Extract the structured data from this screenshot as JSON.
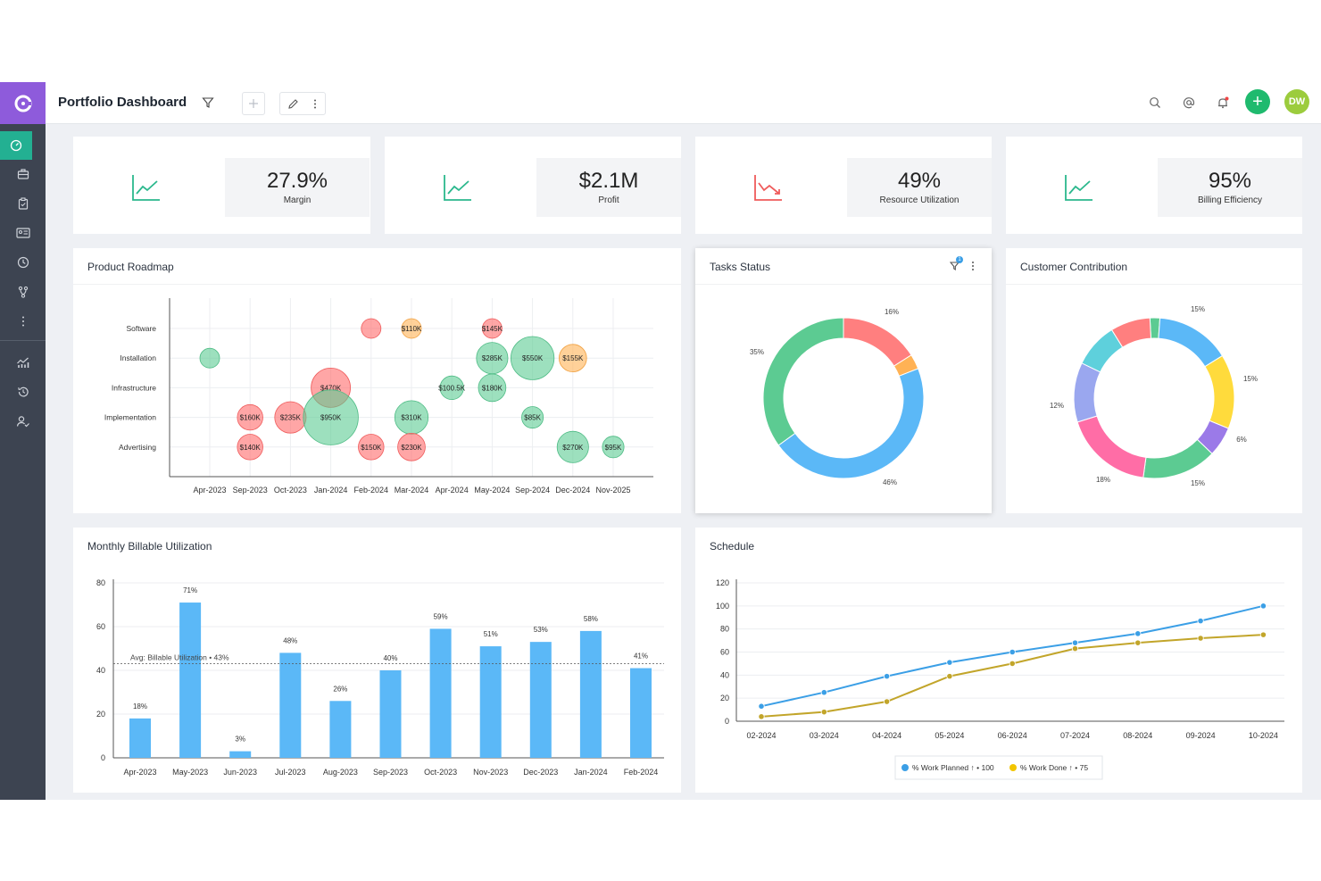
{
  "header": {
    "title": "Portfolio Dashboard",
    "avatar_initials": "DW"
  },
  "colors": {
    "sidebar": "#3d4451",
    "logo": "#8e5bdb",
    "active": "#23b092",
    "green": "#1fba6e",
    "blue": "#5bb8f7",
    "gold": "#c2a52a"
  },
  "sidebar": {
    "icons": [
      "dashboard-icon",
      "briefcase-icon",
      "clipboard-icon",
      "id-card-icon",
      "clock-icon",
      "branch-icon",
      "more-icon",
      "analytics-icon",
      "history-icon",
      "user-check-icon"
    ]
  },
  "kpis": [
    {
      "value": "27.9%",
      "label": "Margin",
      "trend": "up"
    },
    {
      "value": "$2.1M",
      "label": "Profit",
      "trend": "up"
    },
    {
      "value": "49%",
      "label": "Resource Utilization",
      "trend": "down"
    },
    {
      "value": "95%",
      "label": "Billing Efficiency",
      "trend": "up"
    }
  ],
  "cards": {
    "roadmap": "Product Roadmap",
    "tasks": "Tasks Status",
    "tasks_filter_badge": "1",
    "customer": "Customer Contribution",
    "monthly": "Monthly Billable Utilization",
    "schedule": "Schedule"
  },
  "chart_data": [
    {
      "type": "scatter",
      "title": "Product Roadmap",
      "categories_y": [
        "Software",
        "Installation",
        "Infrastructure",
        "Implementation",
        "Advertising"
      ],
      "categories_x": [
        "Apr-2023",
        "Sep-2023",
        "Oct-2023",
        "Jan-2024",
        "Feb-2024",
        "Mar-2024",
        "Apr-2024",
        "May-2024",
        "Sep-2024",
        "Dec-2024",
        "Nov-2025"
      ],
      "points": [
        {
          "x": "Apr-2023",
          "y": "Installation",
          "label": "",
          "size": 1,
          "color": "green"
        },
        {
          "x": "Feb-2024",
          "y": "Software",
          "label": "",
          "size": 1,
          "color": "red"
        },
        {
          "x": "Mar-2024",
          "y": "Software",
          "label": "$110K",
          "size": 1,
          "color": "orange"
        },
        {
          "x": "May-2024",
          "y": "Software",
          "label": "$145K",
          "size": 1,
          "color": "red"
        },
        {
          "x": "May-2024",
          "y": "Installation",
          "label": "$285K",
          "size": 1.6,
          "color": "green"
        },
        {
          "x": "Sep-2024",
          "y": "Installation",
          "label": "$550K",
          "size": 2.2,
          "color": "green"
        },
        {
          "x": "Dec-2024",
          "y": "Installation",
          "label": "$155K",
          "size": 1.4,
          "color": "orange"
        },
        {
          "x": "Jan-2024",
          "y": "Infrastructure",
          "label": "$470K",
          "size": 2,
          "color": "red"
        },
        {
          "x": "Apr-2024",
          "y": "Infrastructure",
          "label": "$100.5K",
          "size": 1.2,
          "color": "green"
        },
        {
          "x": "May-2024",
          "y": "Infrastructure",
          "label": "$180K",
          "size": 1.4,
          "color": "green"
        },
        {
          "x": "Sep-2023",
          "y": "Implementation",
          "label": "$160K",
          "size": 1.3,
          "color": "red"
        },
        {
          "x": "Oct-2023",
          "y": "Implementation",
          "label": "$235K",
          "size": 1.6,
          "color": "red"
        },
        {
          "x": "Jan-2024",
          "y": "Implementation",
          "label": "$950K",
          "size": 2.8,
          "color": "green"
        },
        {
          "x": "Mar-2024",
          "y": "Implementation",
          "label": "$310K",
          "size": 1.7,
          "color": "green"
        },
        {
          "x": "Sep-2024",
          "y": "Implementation",
          "label": "$85K",
          "size": 1.1,
          "color": "green"
        },
        {
          "x": "Sep-2023",
          "y": "Advertising",
          "label": "$140K",
          "size": 1.3,
          "color": "red"
        },
        {
          "x": "Feb-2024",
          "y": "Advertising",
          "label": "$150K",
          "size": 1.3,
          "color": "red"
        },
        {
          "x": "Mar-2024",
          "y": "Advertising",
          "label": "$230K",
          "size": 1.4,
          "color": "red"
        },
        {
          "x": "Dec-2024",
          "y": "Advertising",
          "label": "$270K",
          "size": 1.6,
          "color": "green"
        },
        {
          "x": "Nov-2025",
          "y": "Advertising",
          "label": "$95K",
          "size": 1.1,
          "color": "green"
        }
      ]
    },
    {
      "type": "pie",
      "title": "Tasks Status",
      "values": [
        16,
        3,
        46,
        35
      ],
      "colors": [
        "#ff7f7f",
        "#ffb255",
        "#5bb8f7",
        "#5ccb92"
      ],
      "labels": [
        "16%",
        "",
        "46%",
        "35%"
      ]
    },
    {
      "type": "pie",
      "title": "Customer Contribution",
      "values": [
        2,
        15,
        15,
        6,
        15,
        18,
        12,
        9,
        8
      ],
      "colors": [
        "#5ccb92",
        "#5bb8f7",
        "#ffdb3c",
        "#9b7ae8",
        "#5ccb92",
        "#ff6da6",
        "#9aa7ef",
        "#5ed0dc",
        "#ff7f7f"
      ],
      "labels": [
        "",
        "15%",
        "15%",
        "6%",
        "15%",
        "18%",
        "12%",
        "",
        ""
      ]
    },
    {
      "type": "bar",
      "title": "Monthly Billable Utilization",
      "categories": [
        "Apr-2023",
        "May-2023",
        "Jun-2023",
        "Jul-2023",
        "Aug-2023",
        "Sep-2023",
        "Oct-2023",
        "Nov-2023",
        "Dec-2023",
        "Jan-2024",
        "Feb-2024"
      ],
      "values": [
        18,
        71,
        3,
        48,
        26,
        40,
        59,
        51,
        53,
        58,
        41
      ],
      "data_labels": [
        "18%",
        "71%",
        "3%",
        "48%",
        "26%",
        "40%",
        "59%",
        "51%",
        "53%",
        "58%",
        "41%"
      ],
      "ylim": [
        0,
        80
      ],
      "yticks": [
        "0",
        "20",
        "40",
        "60",
        "80"
      ],
      "avg_value": 43,
      "avg_label": "Avg: Billable Utilization • 43%"
    },
    {
      "type": "line",
      "title": "Schedule",
      "categories": [
        "02-2024",
        "03-2024",
        "04-2024",
        "05-2024",
        "06-2024",
        "07-2024",
        "08-2024",
        "09-2024",
        "10-2024"
      ],
      "series": [
        {
          "name": "% Work Planned",
          "values": [
            13,
            25,
            39,
            51,
            60,
            68,
            76,
            87,
            100
          ],
          "color": "#3b9fe6",
          "legend": "% Work Planned ↑ • 100"
        },
        {
          "name": "% Work Done",
          "values": [
            4,
            8,
            17,
            39,
            50,
            63,
            68,
            72,
            75
          ],
          "color": "#c2a52a",
          "legend": "% Work Done ↑ • 75"
        }
      ],
      "ylim": [
        0,
        120
      ],
      "yticks": [
        "0",
        "20",
        "40",
        "60",
        "80",
        "100",
        "120"
      ]
    }
  ]
}
